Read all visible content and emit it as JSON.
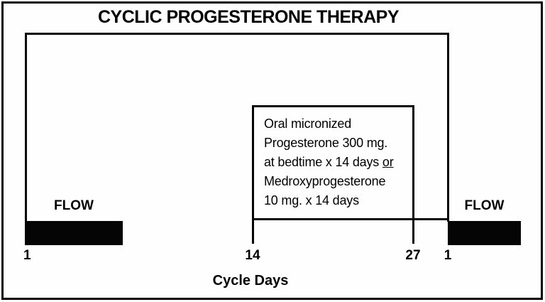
{
  "title": "CYCLIC PROGESTERONE THERAPY",
  "treatment_box": {
    "line1": "Oral micronized",
    "line2": "Progesterone 300 mg.",
    "line3_text": "at bedtime x 14 days",
    "line3_underlined": "or",
    "line4": "Medroxyprogesterone",
    "line5": "10 mg. x 14 days"
  },
  "flow": {
    "left_label": "FLOW",
    "right_label": "FLOW"
  },
  "axis": {
    "label": "Cycle Days",
    "ticks": [
      "1",
      "14",
      "27",
      "1"
    ]
  },
  "colors": {
    "ink": "#050505",
    "background": "#fefefe"
  }
}
